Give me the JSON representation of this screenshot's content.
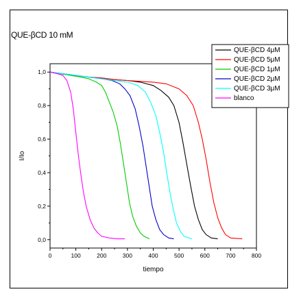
{
  "chart_data": {
    "type": "line",
    "title": "QUE-βCD 10 mM",
    "xlabel": "tiempo",
    "ylabel": "I/Io",
    "xlim": [
      0,
      800
    ],
    "ylim": [
      -0.05,
      1.05
    ],
    "x_ticks": [
      0,
      100,
      200,
      300,
      400,
      500,
      600,
      700,
      800
    ],
    "y_ticks": [
      0.0,
      0.2,
      0.4,
      0.6,
      0.8,
      1.0
    ],
    "y_tick_labels": [
      "0,0",
      "0,2",
      "0,4",
      "0,6",
      "0,8",
      "1,0"
    ],
    "grid": false,
    "legend_position": "top-right",
    "series": [
      {
        "name": "QUE-βCD 4μM",
        "color": "#000000",
        "points": [
          [
            0,
            1.0
          ],
          [
            50,
            0.99
          ],
          [
            100,
            0.98
          ],
          [
            150,
            0.97
          ],
          [
            200,
            0.965
          ],
          [
            250,
            0.955
          ],
          [
            300,
            0.95
          ],
          [
            350,
            0.94
          ],
          [
            400,
            0.92
          ],
          [
            430,
            0.89
          ],
          [
            460,
            0.85
          ],
          [
            480,
            0.8
          ],
          [
            500,
            0.7
          ],
          [
            515,
            0.58
          ],
          [
            530,
            0.45
          ],
          [
            545,
            0.32
          ],
          [
            560,
            0.2
          ],
          [
            575,
            0.12
          ],
          [
            590,
            0.06
          ],
          [
            605,
            0.03
          ],
          [
            625,
            0.01
          ],
          [
            650,
            0.005
          ]
        ]
      },
      {
        "name": "QUE-βCD 5μM",
        "color": "#ff0000",
        "points": [
          [
            0,
            1.0
          ],
          [
            50,
            0.99
          ],
          [
            100,
            0.98
          ],
          [
            150,
            0.97
          ],
          [
            200,
            0.965
          ],
          [
            250,
            0.955
          ],
          [
            300,
            0.95
          ],
          [
            350,
            0.945
          ],
          [
            400,
            0.94
          ],
          [
            450,
            0.93
          ],
          [
            500,
            0.9
          ],
          [
            530,
            0.86
          ],
          [
            555,
            0.8
          ],
          [
            575,
            0.7
          ],
          [
            590,
            0.6
          ],
          [
            605,
            0.48
          ],
          [
            620,
            0.34
          ],
          [
            635,
            0.22
          ],
          [
            650,
            0.13
          ],
          [
            665,
            0.07
          ],
          [
            680,
            0.03
          ],
          [
            700,
            0.01
          ],
          [
            745,
            0.005
          ]
        ]
      },
      {
        "name": "QUE-βCD 1μM",
        "color": "#00cc00",
        "points": [
          [
            0,
            1.0
          ],
          [
            40,
            0.99
          ],
          [
            80,
            0.98
          ],
          [
            120,
            0.97
          ],
          [
            150,
            0.96
          ],
          [
            180,
            0.94
          ],
          [
            200,
            0.92
          ],
          [
            215,
            0.88
          ],
          [
            230,
            0.82
          ],
          [
            245,
            0.76
          ],
          [
            260,
            0.68
          ],
          [
            272,
            0.58
          ],
          [
            284,
            0.46
          ],
          [
            296,
            0.34
          ],
          [
            308,
            0.22
          ],
          [
            320,
            0.14
          ],
          [
            335,
            0.08
          ],
          [
            350,
            0.04
          ],
          [
            365,
            0.02
          ],
          [
            385,
            0.005
          ]
        ]
      },
      {
        "name": "QUE-βCD 2μM",
        "color": "#0000cc",
        "points": [
          [
            0,
            1.0
          ],
          [
            50,
            0.99
          ],
          [
            100,
            0.98
          ],
          [
            150,
            0.97
          ],
          [
            200,
            0.96
          ],
          [
            240,
            0.95
          ],
          [
            270,
            0.93
          ],
          [
            290,
            0.9
          ],
          [
            310,
            0.86
          ],
          [
            330,
            0.78
          ],
          [
            345,
            0.68
          ],
          [
            360,
            0.56
          ],
          [
            372,
            0.44
          ],
          [
            384,
            0.32
          ],
          [
            396,
            0.2
          ],
          [
            410,
            0.12
          ],
          [
            425,
            0.06
          ],
          [
            440,
            0.03
          ],
          [
            460,
            0.01
          ],
          [
            480,
            0.005
          ]
        ]
      },
      {
        "name": "QUE-βCD 3μM",
        "color": "#00ffff",
        "points": [
          [
            0,
            1.0
          ],
          [
            50,
            0.99
          ],
          [
            100,
            0.98
          ],
          [
            150,
            0.97
          ],
          [
            200,
            0.96
          ],
          [
            250,
            0.95
          ],
          [
            300,
            0.94
          ],
          [
            340,
            0.92
          ],
          [
            370,
            0.88
          ],
          [
            390,
            0.82
          ],
          [
            410,
            0.74
          ],
          [
            425,
            0.64
          ],
          [
            440,
            0.52
          ],
          [
            452,
            0.4
          ],
          [
            465,
            0.28
          ],
          [
            478,
            0.18
          ],
          [
            490,
            0.1
          ],
          [
            505,
            0.05
          ],
          [
            520,
            0.02
          ],
          [
            550,
            0.005
          ]
        ]
      },
      {
        "name": "blanco",
        "color": "#ff00ff",
        "points": [
          [
            0,
            1.0
          ],
          [
            30,
            0.99
          ],
          [
            50,
            0.98
          ],
          [
            65,
            0.95
          ],
          [
            80,
            0.88
          ],
          [
            90,
            0.78
          ],
          [
            100,
            0.64
          ],
          [
            110,
            0.5
          ],
          [
            120,
            0.38
          ],
          [
            130,
            0.28
          ],
          [
            140,
            0.2
          ],
          [
            155,
            0.12
          ],
          [
            170,
            0.07
          ],
          [
            185,
            0.04
          ],
          [
            200,
            0.02
          ],
          [
            230,
            0.01
          ],
          [
            260,
            0.005
          ],
          [
            290,
            0.005
          ]
        ]
      }
    ]
  }
}
